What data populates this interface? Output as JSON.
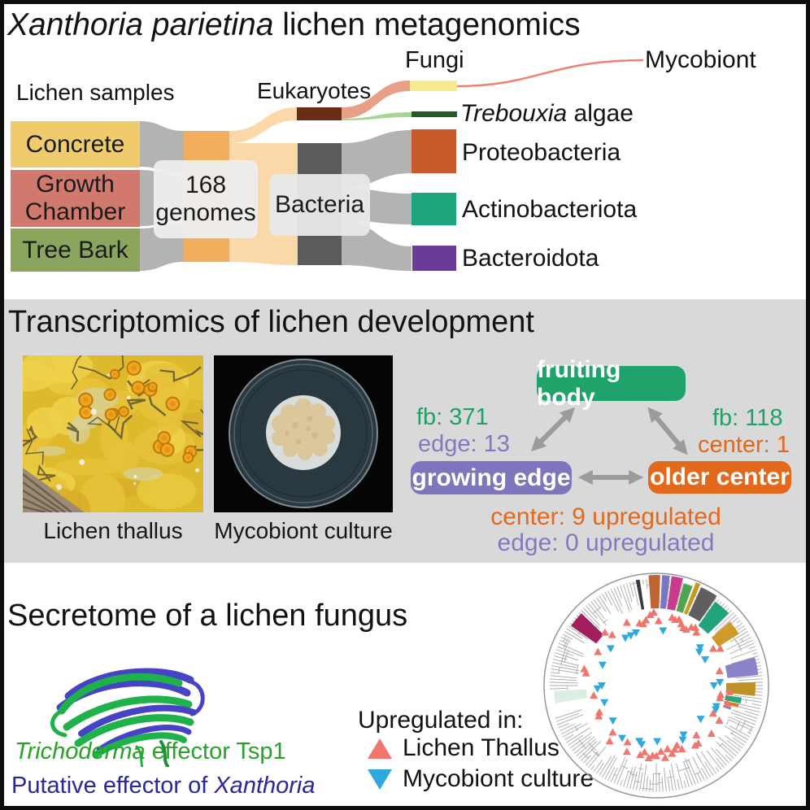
{
  "panels": {
    "metagenomics": {
      "title_italic": "Xanthoria parietina",
      "title_rest": " lichen metagenomics",
      "samples_heading": "Lichen samples",
      "samples": [
        {
          "label": "Concrete",
          "color": "#efcb6c"
        },
        {
          "label": "Growth Chamber",
          "color": "#d2796e"
        },
        {
          "label": "Tree Bark",
          "color": "#8ca55d"
        }
      ],
      "genomes_line1": "168",
      "genomes_line2": "genomes",
      "eukaryotes_label": "Eukaryotes",
      "bacteria_label": "Bacteria",
      "fungi_label": "Fungi",
      "mycobiont_label": "Mycobiont",
      "trebouxia_italic": "Trebouxia",
      "trebouxia_rest": " algae",
      "phyla": [
        {
          "label": "Proteobacteria",
          "color": "#c75b2b"
        },
        {
          "label": "Actinobacteriota",
          "color": "#1ca47c"
        },
        {
          "label": "Bacteroidota",
          "color": "#6a3b97"
        }
      ],
      "node_colors": {
        "flow_gray": "#b3b3b3",
        "flow_pale": "#fad8a8",
        "orange_node": "#f1ae5d",
        "eukaryote_node": "#682d14",
        "bacteria_node": "#5b5b5b",
        "fungi_node": "#f6ec8d",
        "trebouxia_node": "#225b24",
        "proteobacteria": "#c75b2b",
        "actinobacteriota": "#1ca47c",
        "bacteroidota": "#6a3b97",
        "salmon_flow": "#e79f86",
        "algae_flow": "#a6d494",
        "mycobiont_line": "#ed8173"
      }
    },
    "transcriptomics": {
      "title": "Transcriptomics of lichen development",
      "photo_captions": [
        "Lichen thallus",
        "Mycobiont culture"
      ],
      "stages": {
        "fruiting_body": {
          "label": "fruiting body",
          "color": "#1fa36b"
        },
        "growing_edge": {
          "label": "growing edge",
          "color": "#7e76bc"
        },
        "older_center": {
          "label": "older center",
          "color": "#e2691b"
        }
      },
      "deg_counts": {
        "fb_vs_edge_fb": "fb: 371",
        "fb_vs_edge_edge": "edge: 13",
        "fb_vs_center_fb": "fb: 118",
        "fb_vs_center_center": "center: 1",
        "edge_vs_center_center": "center: 9 upregulated",
        "edge_vs_center_edge": "edge: 0 upregulated"
      },
      "stat_colors": {
        "fb": "#21a167",
        "edge": "#8478bf",
        "center": "#e2691b"
      }
    },
    "secretome": {
      "title": "Secretome of a lichen fungus",
      "trichoderma_italic": "Trichoderma",
      "trichoderma_rest": " effector Tsp1",
      "putative_pre": "Putative effector of ",
      "putative_italic": "Xanthoria",
      "label_colors": {
        "trichoderma": "#28a228",
        "putative": "#28289b"
      },
      "legend_title": "Upregulated in:",
      "legend": [
        {
          "label": "Lichen Thallus",
          "color": "#f0756c",
          "marker": "triangle-up"
        },
        {
          "label": "Mycobiont culture",
          "color": "#2fa8dc",
          "marker": "triangle-down"
        }
      ],
      "tree": {
        "outer_r": 138,
        "wedges": [
          {
            "a0": -11,
            "a1": -9,
            "r0": 95,
            "r1": 132,
            "c": "#3a3a3a"
          },
          {
            "a0": -4,
            "a1": 2,
            "r0": 95,
            "r1": 136,
            "c": "#bf6330"
          },
          {
            "a0": 3,
            "a1": 7,
            "r0": 95,
            "r1": 136,
            "c": "#7b76c4"
          },
          {
            "a0": 8,
            "a1": 14,
            "r0": 95,
            "r1": 136,
            "c": "#c93a8c"
          },
          {
            "a0": 15,
            "a1": 20,
            "r0": 95,
            "r1": 130,
            "c": "#4fa54f"
          },
          {
            "a0": 21,
            "a1": 23.5,
            "r0": 95,
            "r1": 136,
            "c": "#c89a20"
          },
          {
            "a0": 24.5,
            "a1": 34,
            "r0": 95,
            "r1": 133,
            "c": "#5f5f5f"
          },
          {
            "a0": 35,
            "a1": 45,
            "r0": 90,
            "r1": 126,
            "c": "#21a47c"
          },
          {
            "a0": 49,
            "a1": 58,
            "r0": 90,
            "r1": 120,
            "c": "#d09a28"
          },
          {
            "a0": 74,
            "a1": 84,
            "r0": 88,
            "r1": 126,
            "c": "#8983c9"
          },
          {
            "a0": 88,
            "a1": 96,
            "r0": 86,
            "r1": 122,
            "c": "#bd9227"
          },
          {
            "a0": 98,
            "a1": 102,
            "r0": 86,
            "r1": 106,
            "c": "#2aa57c"
          },
          {
            "a0": 102.5,
            "a1": 105,
            "r0": 86,
            "r1": 104,
            "c": "#de7b28"
          },
          {
            "a0": 106,
            "a1": 108,
            "r0": 86,
            "r1": 96,
            "c": "#8a7fc8"
          },
          {
            "a0": -55,
            "a1": -46,
            "r0": 90,
            "r1": 128,
            "c": "#a21e5c"
          },
          {
            "a0": -100,
            "a1": -93,
            "r0": 86,
            "r1": 126,
            "c": "#dceee3"
          }
        ],
        "red_tri_angles": [
          -15,
          -12,
          -9,
          -5,
          -2,
          2,
          13,
          16,
          19,
          22,
          25,
          28,
          31,
          34,
          37,
          57,
          60,
          77,
          95,
          98,
          101,
          104,
          116,
          119,
          131,
          141,
          144,
          147,
          158,
          161,
          164,
          167,
          170,
          173,
          176,
          180,
          183,
          186,
          190,
          193,
          204,
          207,
          220,
          223,
          242,
          245,
          261,
          280,
          283,
          300,
          316,
          319,
          335
        ],
        "blue_tri_angles": [
          -27,
          -21,
          7,
          49,
          52,
          62,
          87,
          90,
          109,
          112,
          127,
          151,
          154,
          179,
          194,
          197,
          213,
          231,
          252,
          267,
          270,
          291,
          309,
          327
        ],
        "red_color": "#f0756c",
        "blue_color": "#2fa8dc",
        "branch_color": "#a8a8a8"
      }
    }
  }
}
